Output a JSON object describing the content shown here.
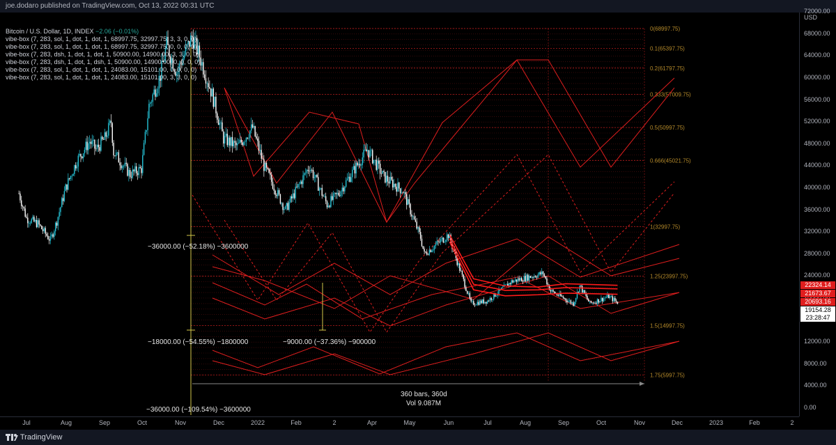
{
  "header": {
    "publisher": "joe.dodaro published on TradingView.com, Oct 13, 2022 00:31 UTC"
  },
  "legend": {
    "title": "Bitcoin / U.S. Dollar, 1D, INDEX",
    "change": "−2.06 (−0.01%)",
    "lines": [
      "vibe-box (7, 283, sol, 1, dot, 1, dot, 1, 68997.75, 32997.75, 3, 3, 0, 0)",
      "vibe-box (7, 283, sol, 1, dot, 1, dot, 1, 68997.75, 32997.75, 0, 0, 0, 0)",
      "vibe-box (7, 283, dsh, 1, dot, 1, dot, 1, 50900.00, 14900.00, 3, 3, 0, 0)",
      "vibe-box (7, 283, dsh, 1, dot, 1, dsh, 1, 50900.00, 14900.00, 0, 0, 0, 0)",
      "vibe-box (7, 283, sol, 1, dot, 1, dot, 1, 24083.00, 15101.00, 0, 0, 0, 0)",
      "vibe-box (7, 283, sol, 1, dot, 1, dot, 1, 24083.00, 15101.00, 3, 3, 0, 0)"
    ]
  },
  "y_axis": {
    "currency": "USD",
    "ticks": [
      "72000.00",
      "68000.00",
      "64000.00",
      "60000.00",
      "56000.00",
      "52000.00",
      "48000.00",
      "44000.00",
      "40000.00",
      "36000.00",
      "32000.00",
      "28000.00",
      "24000.00",
      "20000.00",
      "16000.00",
      "12000.00",
      "8000.00",
      "4000.00",
      "0.00"
    ]
  },
  "price_badges": [
    {
      "value": "22324.14",
      "color": "#e01e1e",
      "text_color": "#ffffff"
    },
    {
      "value": "21673.67",
      "color": "#e01e1e",
      "text_color": "#ffffff"
    },
    {
      "value": "20693.16",
      "color": "#e01e1e",
      "text_color": "#ffffff"
    },
    {
      "value": "19154.28",
      "color": "#ffffff",
      "text_color": "#000000"
    },
    {
      "value": "23:28:47",
      "color": "#ffffff",
      "text_color": "#000000"
    }
  ],
  "x_axis": {
    "ticks": [
      "Jul",
      "Aug",
      "Sep",
      "Oct",
      "Nov",
      "Dec",
      "2022",
      "Feb",
      "2",
      "Apr",
      "May",
      "Jun",
      "Jul",
      "Aug",
      "Sep",
      "Oct",
      "Nov",
      "Dec",
      "2023",
      "Feb",
      "2"
    ]
  },
  "fib_labels": [
    "0(68997.75)",
    "0.1(65397.75)",
    "0.2(61797.75)",
    "0.333(57009.75)",
    "0.5(50997.75)",
    "0.666(45021.75)",
    "1(32997.75)",
    "1.25(23997.75)",
    "1.5(14997.75)",
    "1.75(5997.75)"
  ],
  "annotations": {
    "range1": "−36000.00 (−52.18%) −3600000",
    "range2": "−18000.00 (−54.55%) −1800000",
    "range3": "−9000.00 (−37.36%) −900000",
    "range4": "−36000.00 (−109.54%) −3600000",
    "bars": "360 bars, 360d",
    "vol": "Vol 9.087M"
  },
  "footer": {
    "brand": "TradingView"
  },
  "colors": {
    "up": "#26c6da",
    "down": "#ffffff",
    "boxes": "#e01e1e",
    "fib": "#b58a2a",
    "measure": "#d4c94a"
  },
  "chart_data": {
    "type": "candlestick",
    "symbol": "BTCUSD",
    "ylim": [
      0,
      74000
    ],
    "ma_series": [
      {
        "x": [
          "2022-06-01",
          "2022-06-20",
          "2022-07-15",
          "2022-08-10",
          "2022-09-01",
          "2022-10-12"
        ],
        "y": [
          31500,
          23500,
          22200,
          22000,
          22600,
          22324
        ]
      },
      {
        "x": [
          "2022-06-01",
          "2022-06-20",
          "2022-07-15",
          "2022-08-10",
          "2022-09-01",
          "2022-10-12"
        ],
        "y": [
          30800,
          22500,
          21400,
          21500,
          21900,
          21674
        ]
      },
      {
        "x": [
          "2022-06-01",
          "2022-06-20",
          "2022-07-15",
          "2022-08-10",
          "2022-09-01",
          "2022-10-12"
        ],
        "y": [
          30200,
          21500,
          20400,
          20600,
          20900,
          20693
        ]
      }
    ],
    "price_path": [
      [
        "2021-06-25",
        39000
      ],
      [
        "2021-07-01",
        34500
      ],
      [
        "2021-07-10",
        33500
      ],
      [
        "2021-07-20",
        30500
      ],
      [
        "2021-07-25",
        34000
      ],
      [
        "2021-08-01",
        40000
      ],
      [
        "2021-08-10",
        45000
      ],
      [
        "2021-08-20",
        48500
      ],
      [
        "2021-08-25",
        47000
      ],
      [
        "2021-09-01",
        49000
      ],
      [
        "2021-09-06",
        52000
      ],
      [
        "2021-09-08",
        46500
      ],
      [
        "2021-09-21",
        42500
      ],
      [
        "2021-09-30",
        43500
      ],
      [
        "2021-10-06",
        55000
      ],
      [
        "2021-10-15",
        60500
      ],
      [
        "2021-10-20",
        66000
      ],
      [
        "2021-10-28",
        61000
      ],
      [
        "2021-11-09",
        67500
      ],
      [
        "2021-11-15",
        64000
      ],
      [
        "2021-11-25",
        57000
      ],
      [
        "2021-12-04",
        49000
      ],
      [
        "2021-12-15",
        47500
      ],
      [
        "2021-12-27",
        51000
      ],
      [
        "2022-01-05",
        44000
      ],
      [
        "2022-01-22",
        36000
      ],
      [
        "2022-02-10",
        44000
      ],
      [
        "2022-02-24",
        37000
      ],
      [
        "2022-03-05",
        39000
      ],
      [
        "2022-03-28",
        47000
      ],
      [
        "2022-04-10",
        42000
      ],
      [
        "2022-04-25",
        39500
      ],
      [
        "2022-05-09",
        31000
      ],
      [
        "2022-05-12",
        28000
      ],
      [
        "2022-05-31",
        31500
      ],
      [
        "2022-06-13",
        22500
      ],
      [
        "2022-06-18",
        19000
      ],
      [
        "2022-07-01",
        19500
      ],
      [
        "2022-07-20",
        23000
      ],
      [
        "2022-08-14",
        24500
      ],
      [
        "2022-08-20",
        21300
      ],
      [
        "2022-09-07",
        19000
      ],
      [
        "2022-09-12",
        22200
      ],
      [
        "2022-09-20",
        19000
      ],
      [
        "2022-10-05",
        20300
      ],
      [
        "2022-10-12",
        19154
      ]
    ],
    "last_close": 19154.28
  }
}
